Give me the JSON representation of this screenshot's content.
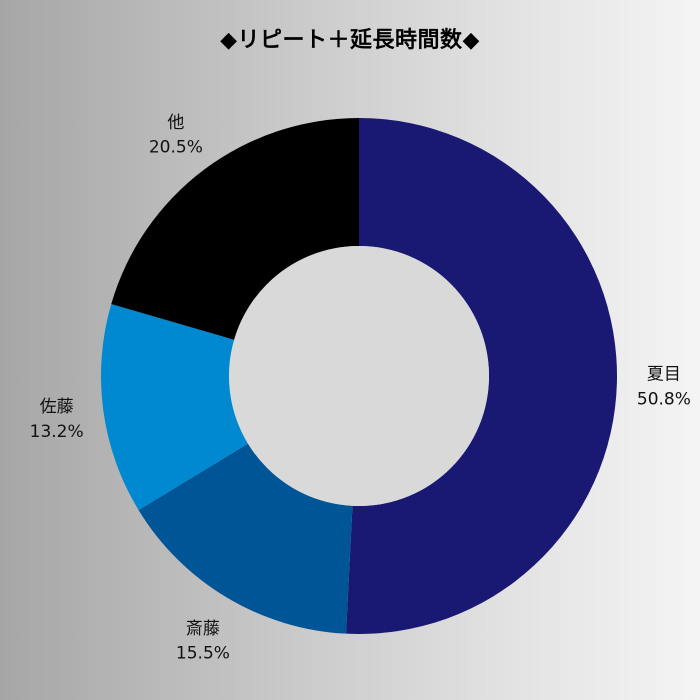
{
  "chart_data": {
    "type": "pie",
    "title": "◆リピート＋延長時間数◆",
    "categories": [
      "夏目",
      "斎藤",
      "佐藤",
      "他"
    ],
    "values": [
      50.8,
      15.5,
      13.2,
      20.5
    ],
    "value_labels": [
      "50.8%",
      "15.5%",
      "13.2%",
      "20.5%"
    ],
    "colors": [
      "#191873",
      "#005596",
      "#0088d0",
      "#000000"
    ],
    "donut_center_color": "#d9d9d9",
    "legend": "none"
  }
}
